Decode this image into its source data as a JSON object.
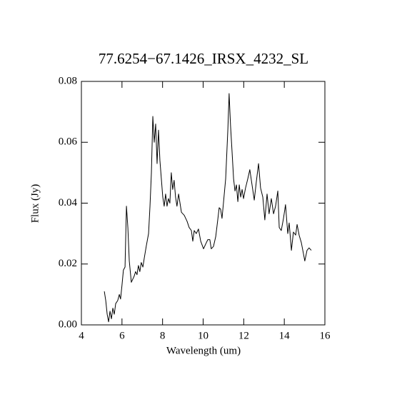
{
  "chart_data": {
    "type": "line",
    "title": "77.6254−67.1426_IRSX_4232_SL",
    "xlabel": "Wavelength (um)",
    "ylabel": "Flux (Jy)",
    "color": "#000000",
    "xlim": [
      4,
      16
    ],
    "xticks": [
      4,
      6,
      8,
      10,
      12,
      14,
      16
    ],
    "ylim": [
      0,
      0.08
    ],
    "yticks": [
      {
        "value": 0,
        "label": "0.00"
      },
      0.02,
      0.04,
      0.06,
      0.08
    ],
    "x": [
      5.13,
      5.2,
      5.27,
      5.34,
      5.41,
      5.48,
      5.55,
      5.62,
      5.69,
      5.79,
      5.87,
      5.93,
      6.0,
      6.07,
      6.15,
      6.22,
      6.29,
      6.36,
      6.46,
      6.53,
      6.6,
      6.67,
      6.74,
      6.81,
      6.88,
      6.95,
      7.03,
      7.1,
      7.2,
      7.31,
      7.38,
      7.45,
      7.52,
      7.59,
      7.66,
      7.73,
      7.8,
      7.87,
      7.94,
      8.01,
      8.08,
      8.15,
      8.22,
      8.29,
      8.36,
      8.43,
      8.5,
      8.57,
      8.64,
      8.71,
      8.79,
      8.86,
      8.93,
      9.07,
      9.21,
      9.31,
      9.42,
      9.49,
      9.56,
      9.66,
      9.77,
      9.88,
      10.02,
      10.12,
      10.23,
      10.33,
      10.4,
      10.51,
      10.62,
      10.72,
      10.79,
      10.86,
      10.93,
      11.0,
      11.11,
      11.22,
      11.28,
      11.35,
      11.42,
      11.5,
      11.57,
      11.64,
      11.71,
      11.78,
      11.85,
      11.92,
      11.99,
      12.09,
      12.2,
      12.3,
      12.41,
      12.52,
      12.62,
      12.73,
      12.83,
      12.94,
      13.04,
      13.15,
      13.25,
      13.36,
      13.47,
      13.57,
      13.68,
      13.75,
      13.85,
      13.96,
      14.06,
      14.17,
      14.24,
      14.35,
      14.45,
      14.56,
      14.63,
      14.73,
      14.84,
      14.94,
      15.01,
      15.12,
      15.22,
      15.33
    ],
    "values": [
      0.011,
      0.008,
      0.0035,
      0.001,
      0.0045,
      0.002,
      0.0055,
      0.0035,
      0.007,
      0.008,
      0.01,
      0.0085,
      0.013,
      0.018,
      0.019,
      0.039,
      0.032,
      0.021,
      0.014,
      0.015,
      0.016,
      0.0175,
      0.0165,
      0.0195,
      0.0175,
      0.0205,
      0.019,
      0.022,
      0.026,
      0.03,
      0.039,
      0.05,
      0.0685,
      0.06,
      0.066,
      0.053,
      0.064,
      0.054,
      0.048,
      0.042,
      0.039,
      0.043,
      0.039,
      0.0415,
      0.04,
      0.05,
      0.0445,
      0.0475,
      0.042,
      0.039,
      0.043,
      0.04,
      0.037,
      0.036,
      0.034,
      0.032,
      0.031,
      0.0275,
      0.031,
      0.03,
      0.0315,
      0.0275,
      0.025,
      0.0265,
      0.028,
      0.028,
      0.025,
      0.0258,
      0.029,
      0.0345,
      0.0385,
      0.038,
      0.035,
      0.04,
      0.048,
      0.0645,
      0.076,
      0.0655,
      0.0575,
      0.048,
      0.044,
      0.046,
      0.0405,
      0.046,
      0.042,
      0.0445,
      0.0415,
      0.045,
      0.048,
      0.051,
      0.046,
      0.041,
      0.047,
      0.053,
      0.045,
      0.042,
      0.0345,
      0.043,
      0.0365,
      0.0415,
      0.0365,
      0.039,
      0.044,
      0.032,
      0.031,
      0.035,
      0.0395,
      0.03,
      0.0335,
      0.0245,
      0.0305,
      0.0295,
      0.033,
      0.0295,
      0.027,
      0.0235,
      0.021,
      0.0245,
      0.0253,
      0.0245
    ]
  }
}
